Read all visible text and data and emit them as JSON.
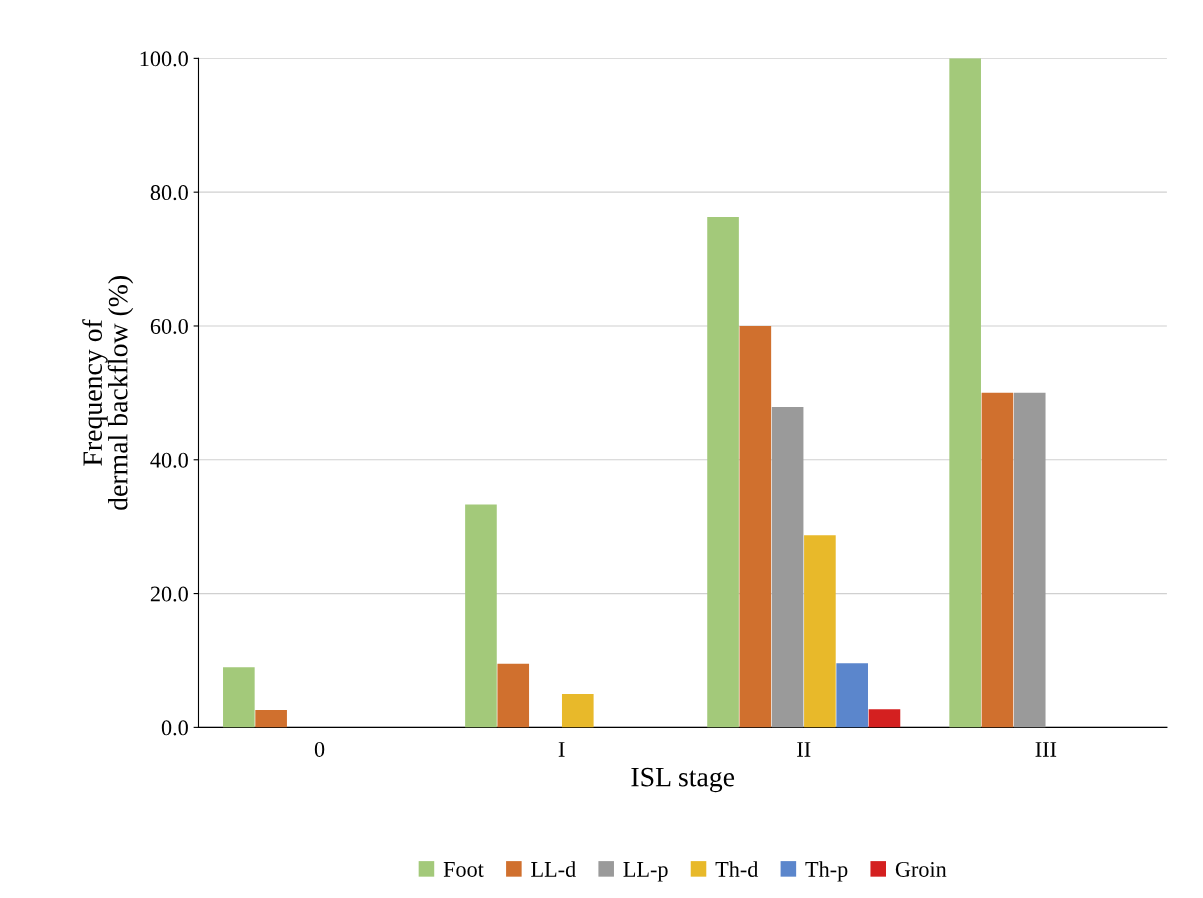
{
  "chart_data": {
    "type": "bar",
    "xlabel": "ISL stage",
    "ylabel": "Frequency of\ndermal backflow (%)",
    "categories": [
      "0",
      "I",
      "II",
      "III"
    ],
    "series": [
      {
        "name": "Foot",
        "color": "#a3c97a",
        "values": [
          9.0,
          33.3,
          76.3,
          100.0
        ]
      },
      {
        "name": "LL-d",
        "color": "#d0702e",
        "values": [
          2.6,
          9.5,
          60.0,
          50.0
        ]
      },
      {
        "name": "LL-p",
        "color": "#9a9a9a",
        "values": [
          0,
          0,
          47.9,
          50.0
        ]
      },
      {
        "name": "Th-d",
        "color": "#e8b92a",
        "values": [
          0,
          5.0,
          28.7,
          0
        ]
      },
      {
        "name": "Th-p",
        "color": "#5b86cc",
        "values": [
          0,
          0,
          9.6,
          0
        ]
      },
      {
        "name": "Groin",
        "color": "#d42020",
        "values": [
          0,
          0,
          2.7,
          0
        ]
      }
    ],
    "ylim": [
      0,
      100
    ],
    "yticks": [
      {
        "value": 0,
        "label": "0.0"
      },
      {
        "value": 20,
        "label": "20.0"
      },
      {
        "value": 40,
        "label": "40.0"
      },
      {
        "value": 60,
        "label": "60.0"
      },
      {
        "value": 80,
        "label": "80.0"
      },
      {
        "value": 100,
        "label": "100.0"
      }
    ],
    "grid": "y",
    "legend": "bottom"
  }
}
